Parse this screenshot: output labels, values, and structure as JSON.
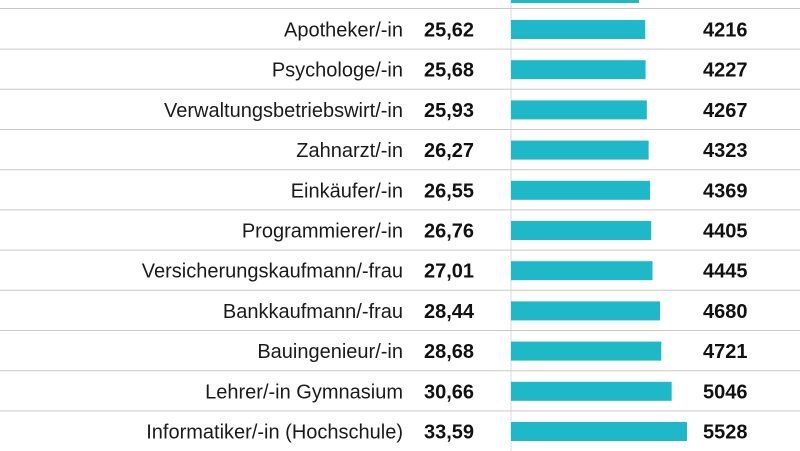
{
  "chart_data": {
    "type": "bar",
    "orientation": "horizontal",
    "title": "",
    "xlabel": "",
    "ylabel": "",
    "categories": [
      "Apotheker/-in",
      "Psychologe/-in",
      "Verwaltungsbetriebswirt/-in",
      "Zahnarzt/-in",
      "Einkäufer/-in",
      "Programmierer/-in",
      "Versicherungskaufmann/-frau",
      "Bankkaufmann/-frau",
      "Bauingenieur/-in",
      "Lehrer/-in Gymnasium",
      "Informatiker/-in (Hochschule)"
    ],
    "hourly_labels": [
      "25,62",
      "25,68",
      "25,93",
      "26,27",
      "26,55",
      "26,76",
      "27,01",
      "28,44",
      "28,68",
      "30,66",
      "33,59"
    ],
    "values": [
      4216,
      4227,
      4267,
      4323,
      4369,
      4405,
      4445,
      4680,
      4721,
      5046,
      5528
    ],
    "xlim": [
      0,
      5528
    ],
    "colors": {
      "bar": "#1fb8c8",
      "text": "#111111"
    }
  }
}
